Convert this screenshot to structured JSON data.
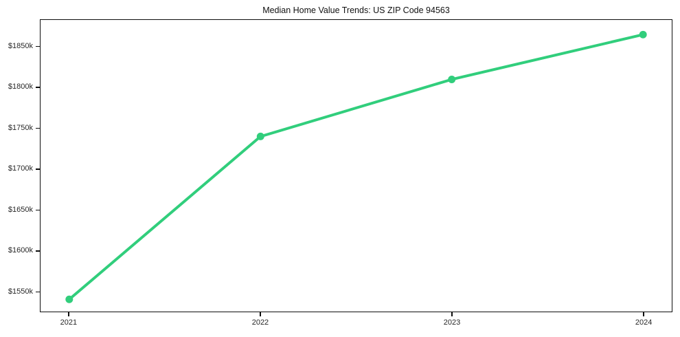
{
  "chart_data": {
    "type": "line",
    "title": "Median Home Value Trends: US ZIP Code 94563",
    "x": [
      2021,
      2022,
      2023,
      2024
    ],
    "x_tick_labels": [
      "2021",
      "2022",
      "2023",
      "2024"
    ],
    "series": [
      {
        "values": [
          1540,
          1740,
          1810,
          1865
        ],
        "color": "#31ce7c",
        "marker": "circle",
        "line_width": 4,
        "marker_radius": 5.5
      }
    ],
    "y_ticks": [
      {
        "value": 1550,
        "label": "$1550k"
      },
      {
        "value": 1600,
        "label": "$1600k"
      },
      {
        "value": 1650,
        "label": "$1650k"
      },
      {
        "value": 1700,
        "label": "$1700k"
      },
      {
        "value": 1750,
        "label": "$1750k"
      },
      {
        "value": 1800,
        "label": "$1800k"
      },
      {
        "value": 1850,
        "label": "$1850k"
      }
    ],
    "xlim": [
      2020.85,
      2024.15
    ],
    "ylim": [
      1525,
      1883
    ],
    "xlabel": "",
    "ylabel": "",
    "grid": false,
    "legend": null,
    "axis_color": "#0d0d0d",
    "tick_label_color": "#262626",
    "title_color": "#111111",
    "background_color": "#ffffff"
  }
}
